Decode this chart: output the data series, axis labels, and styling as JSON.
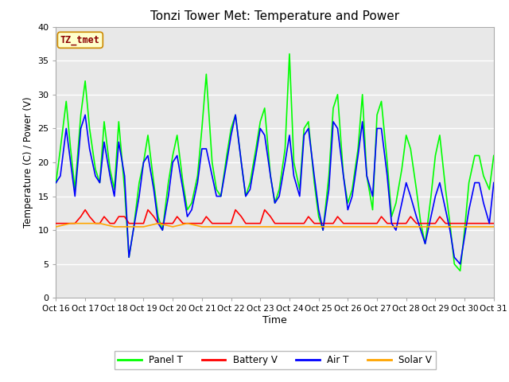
{
  "title": "Tonzi Tower Met: Temperature and Power",
  "xlabel": "Time",
  "ylabel": "Temperature (C) / Power (V)",
  "xlim": [
    0,
    15
  ],
  "ylim": [
    0,
    40
  ],
  "yticks": [
    0,
    5,
    10,
    15,
    20,
    25,
    30,
    35,
    40
  ],
  "xtick_labels": [
    "Oct 16",
    "Oct 17",
    "Oct 18",
    "Oct 19",
    "Oct 20",
    "Oct 21",
    "Oct 22",
    "Oct 23",
    "Oct 24",
    "Oct 25",
    "Oct 26",
    "Oct 27",
    "Oct 28",
    "Oct 29",
    "Oct 30",
    "Oct 31"
  ],
  "watermark_text": "TZ_tmet",
  "plot_bg_color": "#e8e8e8",
  "fig_bg_color": "#ffffff",
  "grid_color": "#ffffff",
  "series": {
    "Panel T": {
      "color": "#00ff00",
      "linewidth": 1.2,
      "x": [
        0.0,
        0.15,
        0.35,
        0.5,
        0.65,
        0.85,
        1.0,
        1.15,
        1.35,
        1.5,
        1.65,
        1.85,
        2.0,
        2.15,
        2.35,
        2.5,
        2.65,
        2.85,
        3.0,
        3.15,
        3.35,
        3.5,
        3.65,
        3.85,
        4.0,
        4.15,
        4.35,
        4.5,
        4.65,
        4.85,
        5.0,
        5.15,
        5.35,
        5.5,
        5.65,
        5.85,
        6.0,
        6.15,
        6.35,
        6.5,
        6.65,
        6.85,
        7.0,
        7.15,
        7.35,
        7.5,
        7.65,
        7.85,
        8.0,
        8.15,
        8.35,
        8.5,
        8.65,
        8.85,
        9.0,
        9.15,
        9.35,
        9.5,
        9.65,
        9.85,
        10.0,
        10.15,
        10.35,
        10.5,
        10.65,
        10.85,
        11.0,
        11.15,
        11.35,
        11.5,
        11.65,
        11.85,
        12.0,
        12.15,
        12.35,
        12.5,
        12.65,
        12.85,
        13.0,
        13.15,
        13.35,
        13.5,
        13.65,
        13.85,
        14.0,
        14.15,
        14.35,
        14.5,
        14.65,
        14.85,
        15.0
      ],
      "y": [
        17,
        22,
        29,
        22,
        16,
        27,
        32,
        25,
        19,
        17,
        26,
        19,
        16,
        26,
        16,
        6,
        10,
        17,
        20,
        24,
        17,
        12,
        10,
        17,
        21,
        24,
        17,
        13,
        14,
        18,
        25,
        33,
        20,
        16,
        15,
        21,
        25,
        27,
        20,
        15,
        17,
        22,
        26,
        28,
        18,
        14,
        16,
        22,
        36,
        20,
        16,
        25,
        26,
        17,
        12,
        10,
        18,
        28,
        30,
        18,
        14,
        16,
        22,
        30,
        18,
        13,
        27,
        29,
        20,
        12,
        14,
        19,
        24,
        22,
        16,
        11,
        8,
        15,
        21,
        24,
        16,
        11,
        5,
        4,
        10,
        17,
        21,
        21,
        18,
        16,
        21
      ]
    },
    "Battery V": {
      "color": "#ff0000",
      "linewidth": 1.2,
      "x": [
        0.0,
        0.15,
        0.35,
        0.5,
        0.65,
        0.85,
        1.0,
        1.15,
        1.35,
        1.5,
        1.65,
        1.85,
        2.0,
        2.15,
        2.35,
        2.5,
        2.65,
        2.85,
        3.0,
        3.15,
        3.35,
        3.5,
        3.65,
        3.85,
        4.0,
        4.15,
        4.35,
        4.5,
        4.65,
        4.85,
        5.0,
        5.15,
        5.35,
        5.5,
        5.65,
        5.85,
        6.0,
        6.15,
        6.35,
        6.5,
        6.65,
        6.85,
        7.0,
        7.15,
        7.35,
        7.5,
        7.65,
        7.85,
        8.0,
        8.15,
        8.35,
        8.5,
        8.65,
        8.85,
        9.0,
        9.15,
        9.35,
        9.5,
        9.65,
        9.85,
        10.0,
        10.15,
        10.35,
        10.5,
        10.65,
        10.85,
        11.0,
        11.15,
        11.35,
        11.5,
        11.65,
        11.85,
        12.0,
        12.15,
        12.35,
        12.5,
        12.65,
        12.85,
        13.0,
        13.15,
        13.35,
        13.5,
        13.65,
        13.85,
        14.0,
        14.15,
        14.35,
        14.5,
        14.65,
        14.85,
        15.0
      ],
      "y": [
        11,
        11,
        11,
        11,
        11,
        12,
        13,
        12,
        11,
        11,
        12,
        11,
        11,
        12,
        12,
        11,
        11,
        11,
        11,
        13,
        12,
        11,
        11,
        11,
        11,
        12,
        11,
        11,
        11,
        11,
        11,
        12,
        11,
        11,
        11,
        11,
        11,
        13,
        12,
        11,
        11,
        11,
        11,
        13,
        12,
        11,
        11,
        11,
        11,
        11,
        11,
        11,
        12,
        11,
        11,
        11,
        11,
        11,
        12,
        11,
        11,
        11,
        11,
        11,
        11,
        11,
        11,
        12,
        11,
        11,
        11,
        11,
        11,
        12,
        11,
        11,
        11,
        11,
        11,
        12,
        11,
        11,
        11,
        11,
        11,
        11,
        11,
        11,
        11,
        11,
        11
      ]
    },
    "Air T": {
      "color": "#0000ff",
      "linewidth": 1.2,
      "x": [
        0.0,
        0.15,
        0.35,
        0.5,
        0.65,
        0.85,
        1.0,
        1.15,
        1.35,
        1.5,
        1.65,
        1.85,
        2.0,
        2.15,
        2.35,
        2.5,
        2.65,
        2.85,
        3.0,
        3.15,
        3.35,
        3.5,
        3.65,
        3.85,
        4.0,
        4.15,
        4.35,
        4.5,
        4.65,
        4.85,
        5.0,
        5.15,
        5.35,
        5.5,
        5.65,
        5.85,
        6.0,
        6.15,
        6.35,
        6.5,
        6.65,
        6.85,
        7.0,
        7.15,
        7.35,
        7.5,
        7.65,
        7.85,
        8.0,
        8.15,
        8.35,
        8.5,
        8.65,
        8.85,
        9.0,
        9.15,
        9.35,
        9.5,
        9.65,
        9.85,
        10.0,
        10.15,
        10.35,
        10.5,
        10.65,
        10.85,
        11.0,
        11.15,
        11.35,
        11.5,
        11.65,
        11.85,
        12.0,
        12.15,
        12.35,
        12.5,
        12.65,
        12.85,
        13.0,
        13.15,
        13.35,
        13.5,
        13.65,
        13.85,
        14.0,
        14.15,
        14.35,
        14.5,
        14.65,
        14.85,
        15.0
      ],
      "y": [
        17,
        18,
        25,
        20,
        15,
        25,
        27,
        22,
        18,
        17,
        23,
        18,
        15,
        23,
        18,
        6,
        10,
        15,
        20,
        21,
        16,
        11,
        10,
        15,
        20,
        21,
        16,
        12,
        13,
        17,
        22,
        22,
        18,
        15,
        15,
        20,
        24,
        27,
        20,
        15,
        16,
        21,
        25,
        24,
        18,
        14,
        15,
        20,
        24,
        18,
        15,
        24,
        25,
        18,
        13,
        10,
        16,
        26,
        25,
        18,
        13,
        15,
        21,
        26,
        18,
        15,
        25,
        25,
        18,
        11,
        10,
        14,
        17,
        15,
        12,
        10,
        8,
        12,
        15,
        17,
        13,
        10,
        6,
        5,
        9,
        13,
        17,
        17,
        14,
        11,
        17
      ]
    },
    "Solar V": {
      "color": "#ffa500",
      "linewidth": 1.2,
      "x": [
        0.0,
        0.5,
        1.0,
        1.5,
        2.0,
        2.5,
        3.0,
        3.5,
        4.0,
        4.5,
        5.0,
        5.5,
        6.0,
        6.5,
        7.0,
        7.5,
        8.0,
        8.5,
        9.0,
        9.5,
        10.0,
        10.5,
        11.0,
        11.5,
        12.0,
        12.5,
        13.0,
        13.5,
        14.0,
        14.5,
        15.0
      ],
      "y": [
        10.5,
        11.0,
        11.0,
        11.0,
        10.5,
        10.5,
        10.5,
        11.0,
        10.5,
        11.0,
        10.5,
        10.5,
        10.5,
        10.5,
        10.5,
        10.5,
        10.5,
        10.5,
        10.5,
        10.5,
        10.5,
        10.5,
        10.5,
        10.5,
        10.5,
        10.5,
        10.5,
        10.5,
        10.5,
        10.5,
        10.5
      ]
    }
  },
  "legend_entries": [
    "Panel T",
    "Battery V",
    "Air T",
    "Solar V"
  ],
  "legend_colors": [
    "#00ff00",
    "#ff0000",
    "#0000ff",
    "#ffa500"
  ]
}
